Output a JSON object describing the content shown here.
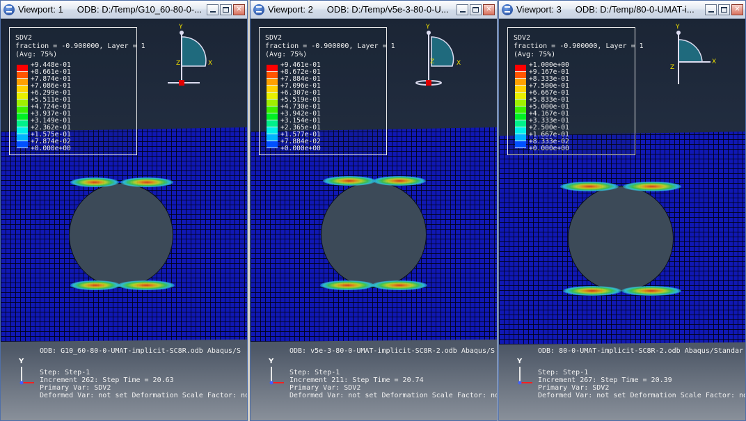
{
  "axis_labels": {
    "y": "Y",
    "x": "X",
    "z": "Z"
  },
  "colors": [
    "#ff0000",
    "#ff5500",
    "#ffa000",
    "#ffd200",
    "#e8f000",
    "#a0f000",
    "#3cf000",
    "#00f024",
    "#00f08a",
    "#00f0e8",
    "#00b4ff",
    "#0050ff",
    "#0010ff"
  ],
  "viewports": [
    {
      "title": "Viewport: 1",
      "odb_path": "ODB: D:/Temp/G10_60-80-0-...",
      "legend": {
        "variable": "SDV2",
        "subtitle": "fraction = -0.900000, Layer = 1",
        "avg": "(Avg: 75%)",
        "values": [
          "+9.448e-01",
          "+8.661e-01",
          "+7.874e-01",
          "+7.086e-01",
          "+6.299e-01",
          "+5.511e-01",
          "+4.724e-01",
          "+3.937e-01",
          "+3.149e-01",
          "+2.362e-01",
          "+1.575e-01",
          "+7.874e-02",
          "+0.000e+00"
        ]
      },
      "info": {
        "odb_line": "ODB: G10_60-80-0-UMAT-implicit-SC8R.odb   Abaqus/S",
        "step": "Step: Step-1",
        "increment": "Increment    262: Step Time =    20.63",
        "primary_var": "Primary Var: SDV2",
        "deformed": "Deformed Var: not set  Deformation Scale Factor: not set"
      }
    },
    {
      "title": "Viewport: 2",
      "odb_path": "ODB: D:/Temp/v5e-3-80-0-U...",
      "legend": {
        "variable": "SDV2",
        "subtitle": "fraction = -0.900000, Layer = 1",
        "avg": "(Avg: 75%)",
        "values": [
          "+9.461e-01",
          "+8.672e-01",
          "+7.884e-01",
          "+7.096e-01",
          "+6.307e-01",
          "+5.519e-01",
          "+4.730e-01",
          "+3.942e-01",
          "+3.154e-01",
          "+2.365e-01",
          "+1.577e-01",
          "+7.884e-02",
          "+0.000e+00"
        ]
      },
      "info": {
        "odb_line": "ODB: v5e-3-80-0-UMAT-implicit-SC8R-2.odb   Abaqus/S",
        "step": "Step: Step-1",
        "increment": "Increment    211: Step Time =    20.74",
        "primary_var": "Primary Var: SDV2",
        "deformed": "Deformed Var: not set  Deformation Scale Factor: not set"
      }
    },
    {
      "title": "Viewport: 3",
      "odb_path": "ODB: D:/Temp/80-0-UMAT-i...",
      "legend": {
        "variable": "SDV2",
        "subtitle": "fraction = -0.900000, Layer = 1",
        "avg": "(Avg: 75%)",
        "values": [
          "+1.000e+00",
          "+9.167e-01",
          "+8.333e-01",
          "+7.500e-01",
          "+6.667e-01",
          "+5.833e-01",
          "+5.000e-01",
          "+4.167e-01",
          "+3.333e-01",
          "+2.500e-01",
          "+1.667e-01",
          "+8.333e-02",
          "+0.000e+00"
        ]
      },
      "info": {
        "odb_line": "ODB: 80-0-UMAT-implicit-SC8R-2.odb   Abaqus/Standar",
        "step": "Step: Step-1",
        "increment": "Increment    267: Step Time =    20.39",
        "primary_var": "Primary Var: SDV2",
        "deformed": "Deformed Var: not set  Deformation Scale Factor: not set"
      }
    }
  ]
}
